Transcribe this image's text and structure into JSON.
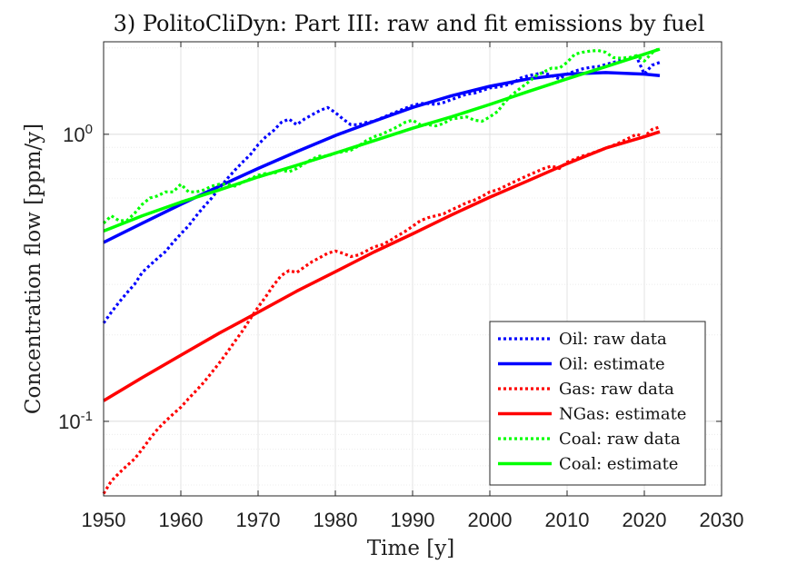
{
  "chart_data": {
    "type": "line",
    "title": "3) PolitoCliDyn: Part III: raw and fit emissions by fuel",
    "xlabel": "Time [y]",
    "ylabel": "Concentration flow [ppm/y]",
    "xlim": [
      1950,
      2030
    ],
    "ylim": [
      0.055,
      2.1
    ],
    "yscale": "log",
    "grid": true,
    "minor_grid": true,
    "legend_position": "bottom-right",
    "x_ticks": [
      1950,
      1960,
      1970,
      1980,
      1990,
      2000,
      2010,
      2020,
      2030
    ],
    "x_tick_labels": [
      "1950",
      "1960",
      "1970",
      "1980",
      "1990",
      "2000",
      "2010",
      "2020",
      "2030"
    ],
    "y_ticks": [
      0.1,
      1
    ],
    "y_tick_base": [
      "10",
      "10"
    ],
    "y_tick_exp": [
      "-1",
      "0"
    ],
    "series": [
      {
        "name": "Oil: raw data",
        "color": "#0000ff",
        "style": "dotted",
        "x": [
          1950,
          1951,
          1952,
          1953,
          1954,
          1955,
          1956,
          1957,
          1958,
          1959,
          1960,
          1961,
          1962,
          1963,
          1964,
          1965,
          1966,
          1967,
          1968,
          1969,
          1970,
          1971,
          1972,
          1973,
          1974,
          1975,
          1976,
          1977,
          1978,
          1979,
          1980,
          1981,
          1982,
          1983,
          1984,
          1985,
          1986,
          1987,
          1988,
          1989,
          1990,
          1991,
          1992,
          1993,
          1994,
          1995,
          1996,
          1997,
          1998,
          1999,
          2000,
          2001,
          2002,
          2003,
          2004,
          2005,
          2006,
          2007,
          2008,
          2009,
          2010,
          2011,
          2012,
          2013,
          2014,
          2015,
          2016,
          2017,
          2018,
          2019,
          2020,
          2021,
          2022
        ],
        "y": [
          0.22,
          0.24,
          0.26,
          0.28,
          0.3,
          0.33,
          0.35,
          0.37,
          0.39,
          0.42,
          0.45,
          0.48,
          0.52,
          0.56,
          0.6,
          0.65,
          0.7,
          0.75,
          0.8,
          0.85,
          0.92,
          0.98,
          1.03,
          1.1,
          1.13,
          1.08,
          1.13,
          1.17,
          1.21,
          1.24,
          1.19,
          1.13,
          1.08,
          1.08,
          1.1,
          1.11,
          1.14,
          1.17,
          1.2,
          1.23,
          1.26,
          1.28,
          1.28,
          1.27,
          1.29,
          1.32,
          1.35,
          1.38,
          1.39,
          1.42,
          1.45,
          1.46,
          1.48,
          1.51,
          1.57,
          1.6,
          1.62,
          1.64,
          1.6,
          1.56,
          1.62,
          1.66,
          1.69,
          1.71,
          1.72,
          1.75,
          1.78,
          1.81,
          1.83,
          1.86,
          1.62,
          1.74,
          1.78
        ]
      },
      {
        "name": "Oil: estimate",
        "color": "#0000ff",
        "style": "solid",
        "x": [
          1950,
          1955,
          1960,
          1965,
          1970,
          1975,
          1980,
          1985,
          1990,
          1995,
          2000,
          2005,
          2010,
          2015,
          2020,
          2022
        ],
        "y": [
          0.42,
          0.49,
          0.57,
          0.66,
          0.76,
          0.87,
          0.99,
          1.11,
          1.24,
          1.36,
          1.47,
          1.56,
          1.62,
          1.64,
          1.62,
          1.6
        ]
      },
      {
        "name": "Gas: raw data",
        "color": "#ff0000",
        "style": "dotted",
        "x": [
          1950,
          1951,
          1952,
          1953,
          1954,
          1955,
          1956,
          1957,
          1958,
          1959,
          1960,
          1961,
          1962,
          1963,
          1964,
          1965,
          1966,
          1967,
          1968,
          1969,
          1970,
          1971,
          1972,
          1973,
          1974,
          1975,
          1976,
          1977,
          1978,
          1979,
          1980,
          1981,
          1982,
          1983,
          1984,
          1985,
          1986,
          1987,
          1988,
          1989,
          1990,
          1991,
          1992,
          1993,
          1994,
          1995,
          1996,
          1997,
          1998,
          1999,
          2000,
          2001,
          2002,
          2003,
          2004,
          2005,
          2006,
          2007,
          2008,
          2009,
          2010,
          2011,
          2012,
          2013,
          2014,
          2015,
          2016,
          2017,
          2018,
          2019,
          2020,
          2021,
          2022
        ],
        "y": [
          0.056,
          0.062,
          0.066,
          0.07,
          0.074,
          0.08,
          0.087,
          0.094,
          0.1,
          0.106,
          0.112,
          0.12,
          0.128,
          0.137,
          0.148,
          0.16,
          0.174,
          0.19,
          0.207,
          0.228,
          0.25,
          0.272,
          0.298,
          0.322,
          0.335,
          0.33,
          0.345,
          0.36,
          0.372,
          0.385,
          0.392,
          0.385,
          0.375,
          0.38,
          0.392,
          0.405,
          0.412,
          0.425,
          0.442,
          0.458,
          0.478,
          0.5,
          0.512,
          0.52,
          0.528,
          0.545,
          0.56,
          0.578,
          0.59,
          0.608,
          0.63,
          0.64,
          0.66,
          0.68,
          0.7,
          0.72,
          0.74,
          0.76,
          0.775,
          0.76,
          0.8,
          0.82,
          0.84,
          0.855,
          0.875,
          0.895,
          0.915,
          0.94,
          0.97,
          1.0,
          0.98,
          1.04,
          1.06
        ]
      },
      {
        "name": "NGas: estimate",
        "color": "#ff0000",
        "style": "solid",
        "x": [
          1950,
          1955,
          1960,
          1965,
          1970,
          1975,
          1980,
          1985,
          1990,
          1995,
          2000,
          2005,
          2010,
          2015,
          2020,
          2022
        ],
        "y": [
          0.118,
          0.142,
          0.17,
          0.203,
          0.24,
          0.284,
          0.332,
          0.389,
          0.45,
          0.523,
          0.604,
          0.69,
          0.79,
          0.895,
          0.98,
          1.02
        ]
      },
      {
        "name": "Coal: raw data",
        "color": "#00ff00",
        "style": "dotted",
        "x": [
          1950,
          1951,
          1952,
          1953,
          1954,
          1955,
          1956,
          1957,
          1958,
          1959,
          1960,
          1961,
          1962,
          1963,
          1964,
          1965,
          1966,
          1967,
          1968,
          1969,
          1970,
          1971,
          1972,
          1973,
          1974,
          1975,
          1976,
          1977,
          1978,
          1979,
          1980,
          1981,
          1982,
          1983,
          1984,
          1985,
          1986,
          1987,
          1988,
          1989,
          1990,
          1991,
          1992,
          1993,
          1994,
          1995,
          1996,
          1997,
          1998,
          1999,
          2000,
          2001,
          2002,
          2003,
          2004,
          2005,
          2006,
          2007,
          2008,
          2009,
          2010,
          2011,
          2012,
          2013,
          2014,
          2015,
          2016,
          2017,
          2018,
          2019,
          2020,
          2021,
          2022
        ],
        "y": [
          0.49,
          0.52,
          0.5,
          0.5,
          0.53,
          0.57,
          0.6,
          0.61,
          0.63,
          0.63,
          0.67,
          0.63,
          0.63,
          0.64,
          0.66,
          0.67,
          0.67,
          0.66,
          0.68,
          0.7,
          0.72,
          0.73,
          0.73,
          0.75,
          0.74,
          0.76,
          0.79,
          0.82,
          0.84,
          0.84,
          0.86,
          0.87,
          0.88,
          0.91,
          0.95,
          0.98,
          1.0,
          1.03,
          1.06,
          1.1,
          1.12,
          1.08,
          1.08,
          1.07,
          1.09,
          1.13,
          1.14,
          1.15,
          1.12,
          1.11,
          1.15,
          1.2,
          1.3,
          1.38,
          1.45,
          1.52,
          1.6,
          1.65,
          1.7,
          1.7,
          1.78,
          1.9,
          1.93,
          1.95,
          1.96,
          1.93,
          1.85,
          1.84,
          1.85,
          1.88,
          1.8,
          1.92,
          2.0
        ]
      },
      {
        "name": "Coal: estimate",
        "color": "#00ff00",
        "style": "solid",
        "x": [
          1950,
          1955,
          1960,
          1965,
          1970,
          1975,
          1980,
          1985,
          1990,
          1995,
          2000,
          2005,
          2010,
          2015,
          2020,
          2022
        ],
        "y": [
          0.46,
          0.52,
          0.58,
          0.64,
          0.71,
          0.78,
          0.86,
          0.95,
          1.05,
          1.15,
          1.27,
          1.41,
          1.56,
          1.72,
          1.9,
          1.98
        ]
      }
    ]
  }
}
